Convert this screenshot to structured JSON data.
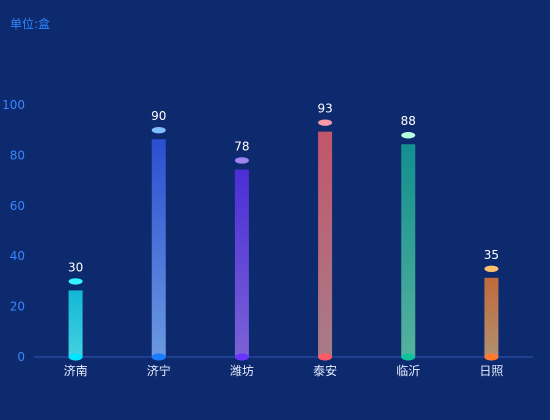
{
  "chart_data": {
    "type": "bar",
    "unit_label": "单位:盒",
    "categories": [
      "济南",
      "济宁",
      "潍坊",
      "泰安",
      "临沂",
      "日照"
    ],
    "values": [
      30,
      90,
      78,
      93,
      88,
      35
    ],
    "ylim": [
      0,
      100
    ],
    "yticks": [
      0,
      20,
      40,
      60,
      80,
      100
    ],
    "grid": false,
    "bar_colors": [
      {
        "top": "#12b7d6",
        "bottom": "#44d1e1",
        "cap": "#33f3ff",
        "base": "#00e5ff"
      },
      {
        "top": "#2a4fd0",
        "bottom": "#6a9ae0",
        "cap": "#80bfff",
        "base": "#1a7cff"
      },
      {
        "top": "#4b2ed6",
        "bottom": "#7b62d6",
        "cap": "#9e86f2",
        "base": "#6a35ff"
      },
      {
        "top": "#c2566a",
        "bottom": "#a77c8a",
        "cap": "#f59aa6",
        "base": "#ff5a66"
      },
      {
        "top": "#138f8e",
        "bottom": "#55b29d",
        "cap": "#b8ffe0",
        "base": "#10c29c"
      },
      {
        "top": "#c06a3a",
        "bottom": "#b09070",
        "cap": "#ffc070",
        "base": "#ff7a2f"
      }
    ]
  }
}
